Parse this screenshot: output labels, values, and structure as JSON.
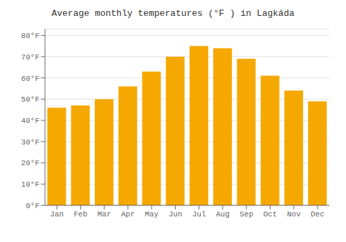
{
  "chart_data": {
    "type": "bar",
    "title": "Average monthly temperatures (°F ) in Lagkáda",
    "categories": [
      "Jan",
      "Feb",
      "Mar",
      "Apr",
      "May",
      "Jun",
      "Jul",
      "Aug",
      "Sep",
      "Oct",
      "Nov",
      "Dec"
    ],
    "values": [
      46,
      47,
      50,
      56,
      63,
      70,
      75,
      74,
      69,
      61,
      54,
      49
    ],
    "color": "#F5A800",
    "ylim": [
      0,
      83
    ],
    "yticks": [
      {
        "value": 0,
        "label": "0°F"
      },
      {
        "value": 10,
        "label": "10°F"
      },
      {
        "value": 20,
        "label": "20°F"
      },
      {
        "value": 30,
        "label": "30°F"
      },
      {
        "value": 40,
        "label": "40°F"
      },
      {
        "value": 50,
        "label": "50°F"
      },
      {
        "value": 60,
        "label": "60°F"
      },
      {
        "value": 70,
        "label": "70°F"
      },
      {
        "value": 80,
        "label": "80°F"
      }
    ],
    "grid": true
  }
}
